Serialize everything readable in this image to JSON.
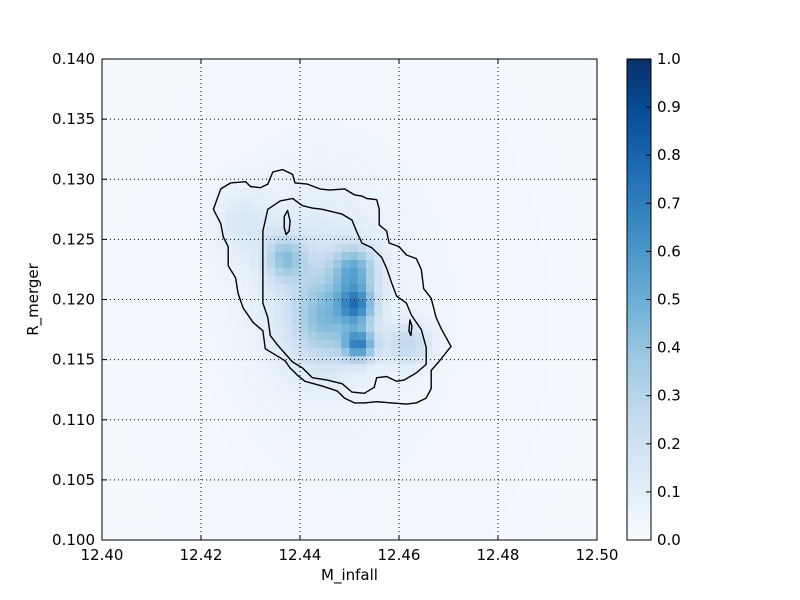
{
  "chart_data": {
    "type": "heatmap",
    "title": "",
    "xlabel": "M_infall",
    "ylabel": "R_merger",
    "xlim": [
      12.4,
      12.5
    ],
    "ylim": [
      0.1,
      0.14
    ],
    "xticks": [
      "12.40",
      "12.42",
      "12.44",
      "12.46",
      "12.48",
      "12.50"
    ],
    "yticks": [
      "0.100",
      "0.105",
      "0.110",
      "0.115",
      "0.120",
      "0.125",
      "0.130",
      "0.135",
      "0.140"
    ],
    "grid": true,
    "colormap": "Blues",
    "colorbar": {
      "range": [
        0.0,
        1.0
      ],
      "ticks": [
        "0.0",
        "0.1",
        "0.2",
        "0.3",
        "0.4",
        "0.5",
        "0.6",
        "0.7",
        "0.8",
        "0.9",
        "1.0"
      ]
    },
    "density_components": [
      {
        "x": 12.452,
        "y": 0.1163,
        "sx": 0.0022,
        "sy": 0.0009,
        "amp": 0.55
      },
      {
        "x": 12.4515,
        "y": 0.1195,
        "sx": 0.0025,
        "sy": 0.0011,
        "amp": 0.5
      },
      {
        "x": 12.451,
        "y": 0.1225,
        "sx": 0.003,
        "sy": 0.0014,
        "amp": 0.38
      },
      {
        "x": 12.437,
        "y": 0.1235,
        "sx": 0.0028,
        "sy": 0.0013,
        "amp": 0.3
      },
      {
        "x": 12.445,
        "y": 0.1185,
        "sx": 0.0045,
        "sy": 0.0025,
        "amp": 0.3
      },
      {
        "x": 12.462,
        "y": 0.1163,
        "sx": 0.0032,
        "sy": 0.0012,
        "amp": 0.22
      },
      {
        "x": 12.443,
        "y": 0.1215,
        "sx": 0.009,
        "sy": 0.0055,
        "amp": 0.12
      },
      {
        "x": 12.428,
        "y": 0.1265,
        "sx": 0.004,
        "sy": 0.002,
        "amp": 0.1
      },
      {
        "x": 12.45,
        "y": 0.118,
        "sx": 0.02,
        "sy": 0.012,
        "amp": 0.035
      }
    ],
    "contours": [
      {
        "level": "outer",
        "points": [
          [
            12.4225,
            0.1275
          ],
          [
            12.424,
            0.1292
          ],
          [
            12.426,
            0.1297
          ],
          [
            12.429,
            0.1298
          ],
          [
            12.43,
            0.1294
          ],
          [
            12.432,
            0.1293
          ],
          [
            12.4335,
            0.1296
          ],
          [
            12.4345,
            0.1306
          ],
          [
            12.4365,
            0.1308
          ],
          [
            12.4385,
            0.1304
          ],
          [
            12.439,
            0.1297
          ],
          [
            12.4415,
            0.1296
          ],
          [
            12.444,
            0.1292
          ],
          [
            12.446,
            0.1291
          ],
          [
            12.449,
            0.1292
          ],
          [
            12.451,
            0.1287
          ],
          [
            12.4525,
            0.1286
          ],
          [
            12.4535,
            0.1284
          ],
          [
            12.4555,
            0.1283
          ],
          [
            12.456,
            0.1275
          ],
          [
            12.456,
            0.1262
          ],
          [
            12.4575,
            0.1257
          ],
          [
            12.458,
            0.1247
          ],
          [
            12.46,
            0.1244
          ],
          [
            12.4615,
            0.1237
          ],
          [
            12.4635,
            0.1234
          ],
          [
            12.4645,
            0.1225
          ],
          [
            12.465,
            0.1209
          ],
          [
            12.4665,
            0.1201
          ],
          [
            12.4675,
            0.1185
          ],
          [
            12.4685,
            0.1176
          ],
          [
            12.4705,
            0.1161
          ],
          [
            12.468,
            0.1148
          ],
          [
            12.4665,
            0.1141
          ],
          [
            12.4665,
            0.1126
          ],
          [
            12.4655,
            0.1118
          ],
          [
            12.4635,
            0.1114
          ],
          [
            12.4615,
            0.1113
          ],
          [
            12.4585,
            0.1114
          ],
          [
            12.4555,
            0.1115
          ],
          [
            12.453,
            0.1114
          ],
          [
            12.451,
            0.1114
          ],
          [
            12.449,
            0.1118
          ],
          [
            12.4475,
            0.1124
          ],
          [
            12.4445,
            0.1128
          ],
          [
            12.441,
            0.1132
          ],
          [
            12.4395,
            0.1137
          ],
          [
            12.438,
            0.1143
          ],
          [
            12.437,
            0.1149
          ],
          [
            12.435,
            0.1154
          ],
          [
            12.433,
            0.1159
          ],
          [
            12.4325,
            0.1174
          ],
          [
            12.4305,
            0.1181
          ],
          [
            12.4285,
            0.1193
          ],
          [
            12.4275,
            0.1205
          ],
          [
            12.427,
            0.1218
          ],
          [
            12.4255,
            0.1228
          ],
          [
            12.4255,
            0.1244
          ],
          [
            12.4245,
            0.1252
          ],
          [
            12.424,
            0.1263
          ],
          [
            12.4225,
            0.1275
          ]
        ]
      },
      {
        "level": "inner",
        "points": [
          [
            12.4325,
            0.1257
          ],
          [
            12.4335,
            0.1275
          ],
          [
            12.436,
            0.1282
          ],
          [
            12.4385,
            0.1284
          ],
          [
            12.4405,
            0.1278
          ],
          [
            12.4425,
            0.1276
          ],
          [
            12.4445,
            0.1275
          ],
          [
            12.4465,
            0.1273
          ],
          [
            12.4485,
            0.1271
          ],
          [
            12.4505,
            0.1266
          ],
          [
            12.4515,
            0.1256
          ],
          [
            12.4525,
            0.1247
          ],
          [
            12.4545,
            0.1243
          ],
          [
            12.4565,
            0.1235
          ],
          [
            12.4575,
            0.1226
          ],
          [
            12.4585,
            0.1214
          ],
          [
            12.4595,
            0.1203
          ],
          [
            12.4615,
            0.1197
          ],
          [
            12.4625,
            0.1187
          ],
          [
            12.4645,
            0.1175
          ],
          [
            12.4655,
            0.116
          ],
          [
            12.4655,
            0.1146
          ],
          [
            12.4635,
            0.1139
          ],
          [
            12.461,
            0.1133
          ],
          [
            12.4595,
            0.1132
          ],
          [
            12.4575,
            0.1136
          ],
          [
            12.4555,
            0.1135
          ],
          [
            12.455,
            0.1127
          ],
          [
            12.453,
            0.1122
          ],
          [
            12.4505,
            0.1123
          ],
          [
            12.4485,
            0.113
          ],
          [
            12.4455,
            0.1133
          ],
          [
            12.4425,
            0.1135
          ],
          [
            12.4405,
            0.1143
          ],
          [
            12.4385,
            0.1148
          ],
          [
            12.437,
            0.1155
          ],
          [
            12.4355,
            0.1162
          ],
          [
            12.434,
            0.117
          ],
          [
            12.4335,
            0.1185
          ],
          [
            12.4325,
            0.1197
          ],
          [
            12.4325,
            0.1211
          ],
          [
            12.4325,
            0.1225
          ],
          [
            12.4325,
            0.1241
          ],
          [
            12.4325,
            0.1257
          ]
        ]
      },
      {
        "level": "island",
        "points": [
          [
            12.4368,
            0.1269
          ],
          [
            12.4375,
            0.1274
          ],
          [
            12.438,
            0.1265
          ],
          [
            12.4378,
            0.1257
          ],
          [
            12.4372,
            0.1254
          ],
          [
            12.4368,
            0.126
          ],
          [
            12.4368,
            0.1269
          ]
        ]
      },
      {
        "level": "island",
        "points": [
          [
            12.4622,
            0.1183
          ],
          [
            12.4626,
            0.1178
          ],
          [
            12.4624,
            0.117
          ],
          [
            12.462,
            0.1174
          ],
          [
            12.4622,
            0.1183
          ]
        ]
      }
    ]
  }
}
